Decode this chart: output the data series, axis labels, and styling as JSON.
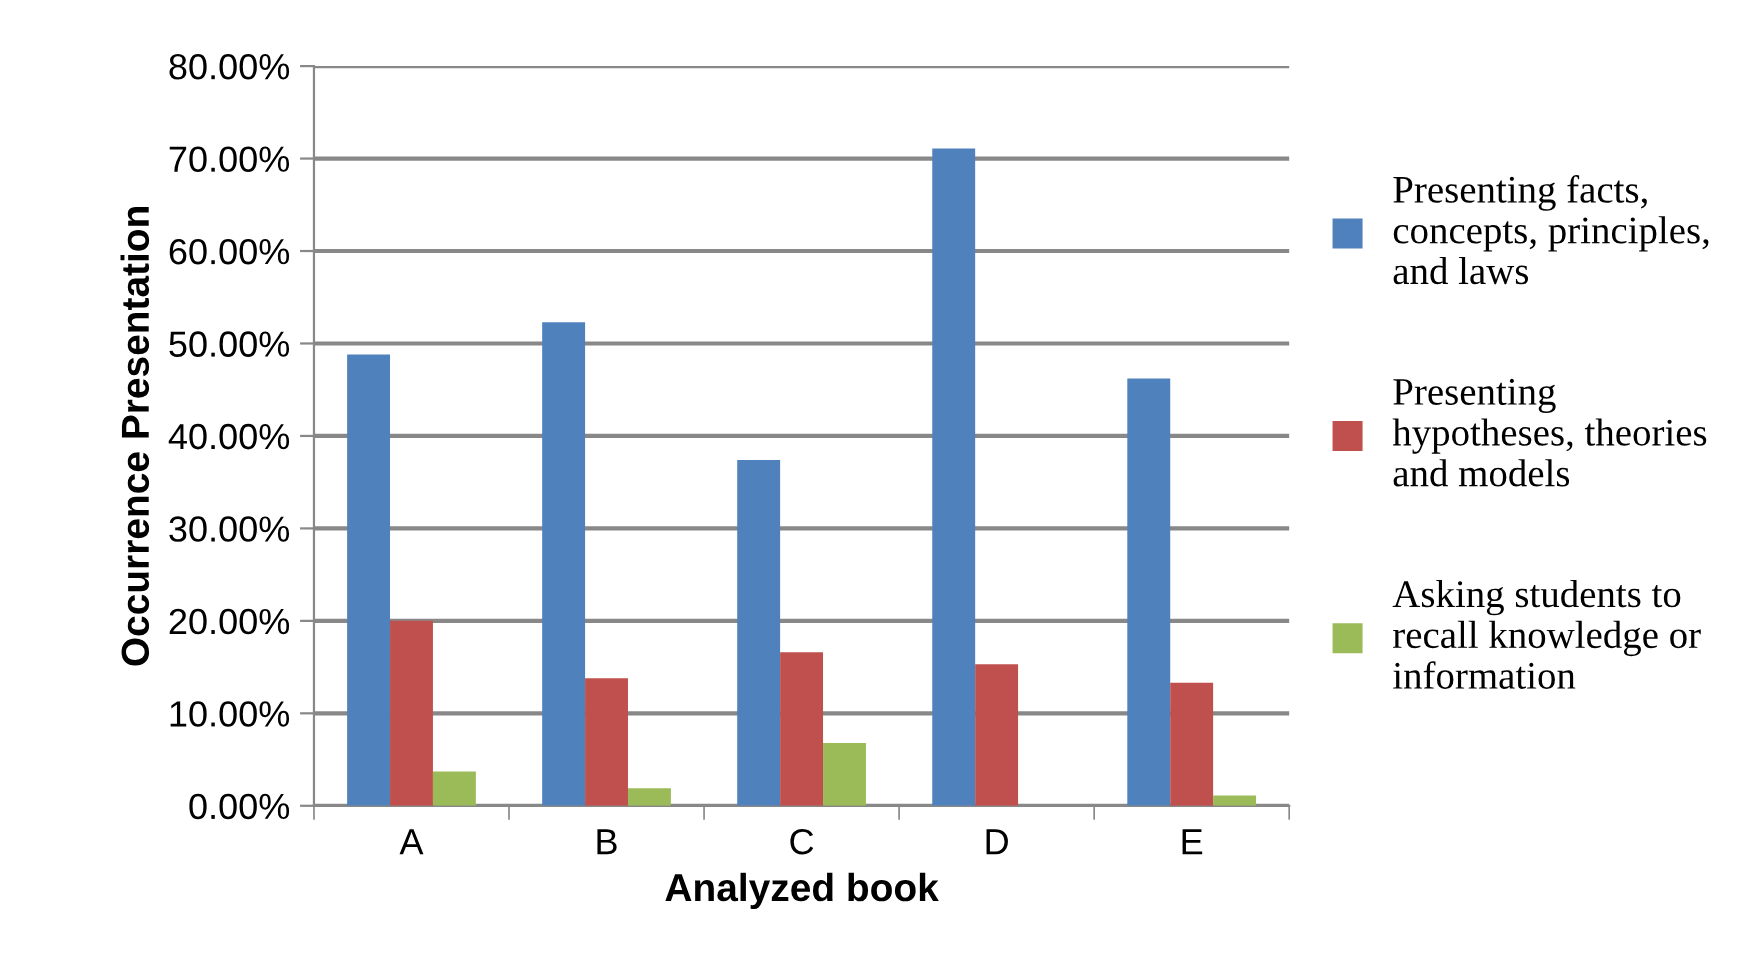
{
  "chart_data": {
    "type": "bar",
    "xlabel": "Analyzed book",
    "ylabel": "Occurrence Presentation",
    "categories": [
      "A",
      "B",
      "C",
      "D",
      "E"
    ],
    "series": [
      {
        "name": "Presenting facts,\nconcepts, principles,\nand laws",
        "color": "#4f81bd",
        "values": [
          48.8,
          52.3,
          37.4,
          71.1,
          46.2
        ]
      },
      {
        "name": "Presenting\nhypotheses, theories\nand models",
        "color": "#c0504d",
        "values": [
          20.0,
          13.8,
          16.6,
          15.3,
          13.3
        ]
      },
      {
        "name": "Asking students to\nrecall knowledge or\ninformation",
        "color": "#9bbb59",
        "values": [
          3.7,
          1.9,
          6.8,
          0,
          1.1
        ]
      }
    ],
    "ylim": [
      0,
      80
    ],
    "yticks": [
      {
        "value": 0,
        "label": "0.00%"
      },
      {
        "value": 10,
        "label": "10.00%"
      },
      {
        "value": 20,
        "label": "20.00%"
      },
      {
        "value": 30,
        "label": "30.00%"
      },
      {
        "value": 40,
        "label": "40.00%"
      },
      {
        "value": 50,
        "label": "50.00%"
      },
      {
        "value": 60,
        "label": "60.00%"
      },
      {
        "value": 70,
        "label": "70.00%"
      },
      {
        "value": 80,
        "label": "80.00%"
      }
    ],
    "grid": "y",
    "legend": "right"
  }
}
